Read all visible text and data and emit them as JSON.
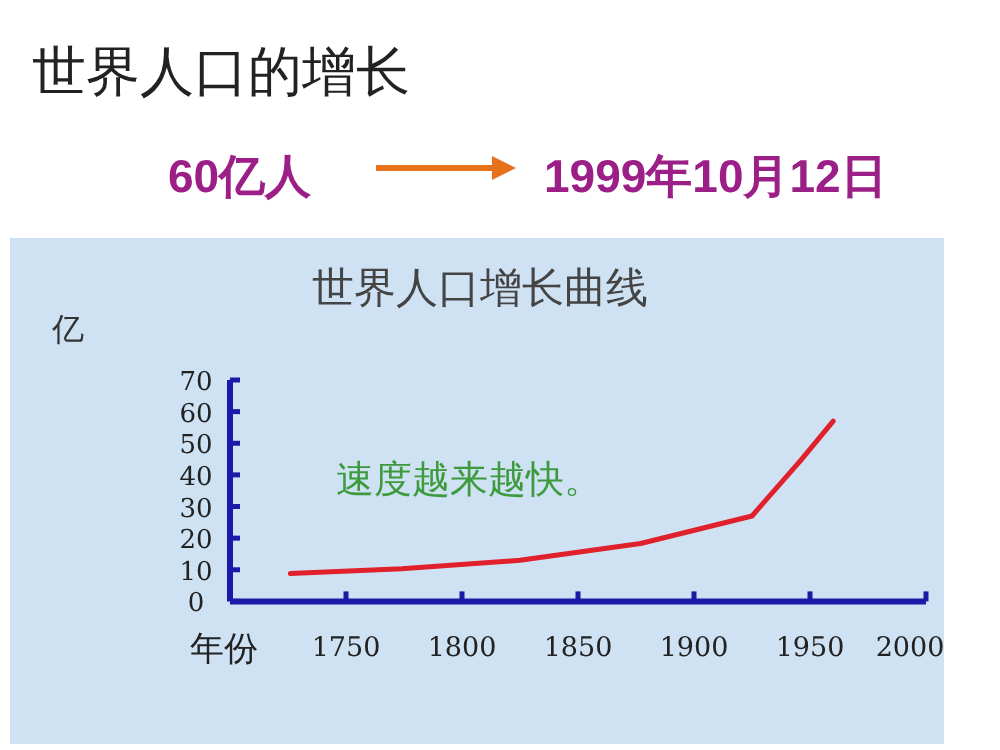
{
  "chart_data": {
    "type": "line",
    "title": "世界人口的增长",
    "subtitle": "世界人口增长曲线",
    "xlabel": "年份",
    "ylabel": "亿",
    "annotations": [
      "60亿人",
      "1999年10月12日",
      "速度越来越快。"
    ],
    "x": [
      1726,
      1774,
      1825,
      1877,
      1925,
      1946,
      1960
    ],
    "series": [
      {
        "color": "#e0202a",
        "values": [
          8.8,
          10.3,
          13,
          18.3,
          27,
          44.6,
          57
        ]
      }
    ],
    "xlim": [
      1700,
      2000
    ],
    "xticks": [
      1750,
      1800,
      1850,
      1900,
      1950,
      2000
    ],
    "ylim": [
      0,
      70
    ],
    "yticks": [
      0,
      10,
      20,
      30,
      40,
      50,
      60,
      70
    ],
    "grid": false,
    "marker": "none",
    "line_style": "solid"
  }
}
